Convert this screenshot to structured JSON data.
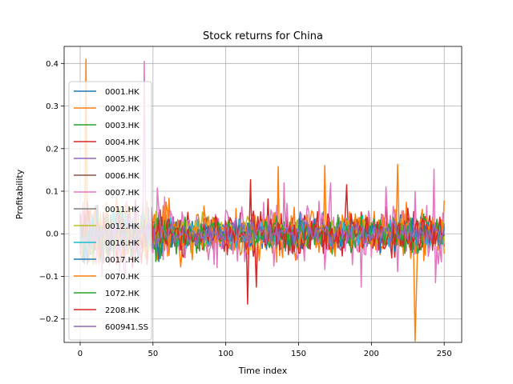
{
  "chart_data": {
    "type": "line",
    "title": "Stock returns for China",
    "xlabel": "Time index",
    "ylabel": "Profitability",
    "xlim": [
      -11,
      262
    ],
    "ylim": [
      -0.255,
      0.44
    ],
    "xticks": [
      0,
      50,
      100,
      150,
      200,
      250
    ],
    "xtick_labels": [
      "0",
      "50",
      "100",
      "150",
      "200",
      "250"
    ],
    "yticks": [
      -0.2,
      -0.1,
      0.0,
      0.1,
      0.2,
      0.3,
      0.4
    ],
    "ytick_labels": [
      "−0.2",
      "−0.1",
      "0.0",
      "0.1",
      "0.2",
      "0.3",
      "0.4"
    ],
    "grid": true,
    "legend_position": "upper-left",
    "n_points": 251,
    "series": [
      {
        "name": "0001.HK",
        "color": "#1f77b4",
        "amp": 0.018,
        "seed": 11,
        "spikes": []
      },
      {
        "name": "0002.HK",
        "color": "#ff7f0e",
        "amp": 0.03,
        "seed": 23,
        "spikes": [
          [
            4,
            0.41
          ],
          [
            3,
            -0.05
          ],
          [
            136,
            0.158
          ],
          [
            168,
            0.16
          ],
          [
            218,
            0.163
          ],
          [
            230,
            -0.252
          ],
          [
            231,
            -0.125
          ],
          [
            250,
            0.078
          ]
        ]
      },
      {
        "name": "0003.HK",
        "color": "#2ca02c",
        "amp": 0.018,
        "seed": 37,
        "spikes": []
      },
      {
        "name": "0004.HK",
        "color": "#d62728",
        "amp": 0.026,
        "seed": 41,
        "spikes": [
          [
            115,
            -0.165
          ],
          [
            117,
            0.127
          ],
          [
            121,
            -0.125
          ],
          [
            129,
            0.082
          ],
          [
            183,
            0.115
          ]
        ]
      },
      {
        "name": "0005.HK",
        "color": "#9467bd",
        "amp": 0.016,
        "seed": 53,
        "spikes": []
      },
      {
        "name": "0006.HK",
        "color": "#8c564b",
        "amp": 0.015,
        "seed": 67,
        "spikes": []
      },
      {
        "name": "0007.HK",
        "color": "#e377c2",
        "amp": 0.035,
        "seed": 71,
        "spikes": [
          [
            44,
            0.405
          ],
          [
            140,
            0.12
          ],
          [
            172,
            0.12
          ],
          [
            193,
            -0.125
          ],
          [
            210,
            0.11
          ],
          [
            243,
            0.152
          ],
          [
            244,
            -0.115
          ]
        ]
      },
      {
        "name": "0011.HK",
        "color": "#7f7f7f",
        "amp": 0.016,
        "seed": 83,
        "spikes": []
      },
      {
        "name": "0012.HK",
        "color": "#bcbd22",
        "amp": 0.018,
        "seed": 97,
        "spikes": []
      },
      {
        "name": "0016.HK",
        "color": "#17becf",
        "amp": 0.018,
        "seed": 101,
        "spikes": []
      },
      {
        "name": "0017.HK",
        "color": "#1f77b4",
        "amp": 0.02,
        "seed": 113,
        "spikes": []
      },
      {
        "name": "0070.HK",
        "color": "#ff7f0e",
        "amp": 0.025,
        "seed": 127,
        "spikes": []
      },
      {
        "name": "1072.HK",
        "color": "#2ca02c",
        "amp": 0.02,
        "seed": 131,
        "spikes": []
      },
      {
        "name": "2208.HK",
        "color": "#d62728",
        "amp": 0.022,
        "seed": 139,
        "spikes": []
      },
      {
        "name": "600941.SS",
        "color": "#9467bd",
        "amp": 0.015,
        "seed": 149,
        "spikes": []
      }
    ]
  }
}
